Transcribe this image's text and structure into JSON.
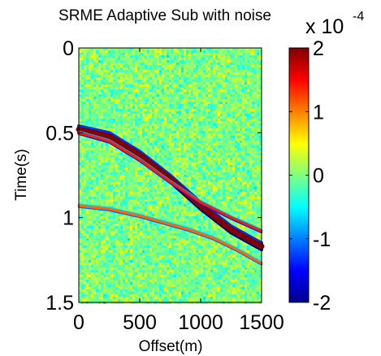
{
  "chart_data": {
    "type": "heatmap",
    "title": "SRME Adaptive Sub with noise",
    "xlabel": "Offset(m)",
    "ylabel": "Time(s)",
    "xlim": [
      0,
      1500
    ],
    "ylim": [
      0,
      1.5
    ],
    "y_reversed": true,
    "x_ticks": [
      "0",
      "500",
      "1000",
      "1500"
    ],
    "x_tick_values": [
      0,
      500,
      1000,
      1500
    ],
    "y_ticks": [
      "0",
      "0.5",
      "1",
      "1.5"
    ],
    "y_tick_values": [
      0,
      0.5,
      1,
      1.5
    ],
    "colorbar": {
      "range": [
        -2,
        2
      ],
      "ticks": [
        "-2",
        "-1",
        "0",
        "1",
        "2"
      ],
      "tick_values": [
        -2,
        -1,
        0,
        1,
        2
      ],
      "exponent_base": "x 10",
      "exponent": "-4",
      "colormap": "jet"
    },
    "background": "random noise, amplitude near 0",
    "events": [
      {
        "description": "strong primary reflection (dark red core, blue flank)",
        "points": [
          [
            0,
            0.48
          ],
          [
            250,
            0.52
          ],
          [
            500,
            0.63
          ],
          [
            750,
            0.77
          ],
          [
            1000,
            0.93
          ],
          [
            1250,
            1.07
          ],
          [
            1500,
            1.17
          ]
        ],
        "peak_amplitude": 2.2
      },
      {
        "description": "upper branch reflection (red / blue)",
        "points": [
          [
            0,
            0.5
          ],
          [
            250,
            0.55
          ],
          [
            500,
            0.66
          ],
          [
            750,
            0.79
          ],
          [
            1000,
            0.91
          ],
          [
            1250,
            1.0
          ],
          [
            1500,
            1.08
          ]
        ],
        "peak_amplitude": 1.4
      },
      {
        "description": "weak shallow event (blue / red)",
        "points": [
          [
            0,
            0.93
          ],
          [
            250,
            0.95
          ],
          [
            500,
            0.99
          ],
          [
            700,
            1.03
          ],
          [
            900,
            1.07
          ],
          [
            1100,
            1.12
          ],
          [
            1300,
            1.19
          ],
          [
            1500,
            1.27
          ]
        ],
        "peak_amplitude": 1.1
      }
    ]
  }
}
